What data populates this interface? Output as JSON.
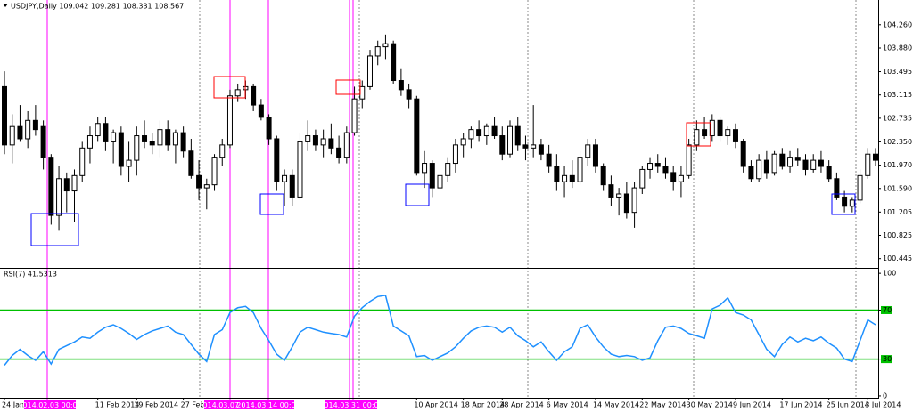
{
  "chart_data": [
    {
      "type": "candlestick",
      "title": "USDJPY,Daily 109.042 109.281 108.331 108.567",
      "categories": [
        "24 Jan 2014",
        null,
        null,
        null,
        null,
        null,
        null,
        null,
        null,
        null,
        null,
        null,
        "11 Feb 2014",
        null,
        null,
        null,
        null,
        "19 Feb 2014",
        null,
        null,
        null,
        null,
        null,
        "27 Feb 2014",
        null,
        null,
        null,
        null,
        null,
        null,
        null,
        null,
        null,
        null,
        null,
        null,
        null,
        null,
        null,
        null,
        null,
        null,
        null,
        null,
        null,
        null,
        null,
        null,
        null,
        null,
        null,
        null,
        null,
        "10 Apr 2014",
        null,
        null,
        null,
        null,
        null,
        "18 Apr 2014",
        null,
        null,
        null,
        null,
        "28 Apr 2014",
        null,
        null,
        null,
        null,
        null,
        "6 May 2014",
        null,
        null,
        null,
        null,
        null,
        "14 May 2014",
        null,
        null,
        null,
        null,
        null,
        "22 May 2014",
        null,
        null,
        null,
        null,
        null,
        "30 May 2014",
        null,
        null,
        null,
        null,
        null,
        "9 Jun 2014",
        null,
        null,
        null,
        null,
        null,
        "17 Jun 2014",
        null,
        null,
        null,
        null,
        null,
        "25 Jun 2014",
        null,
        null,
        null,
        null,
        "3 Jul 2014",
        null
      ],
      "open": [
        103.25,
        102.3,
        102.6,
        102.4,
        102.7,
        102.6,
        102.1,
        101.15,
        101.75,
        101.55,
        101.8,
        102.25,
        102.45,
        102.65,
        102.35,
        102.5,
        101.95,
        102.05,
        102.45,
        102.35,
        102.3,
        102.55,
        102.3,
        102.5,
        102.2,
        101.8,
        101.6,
        101.65,
        102.1,
        102.3,
        103.1,
        103.2,
        103.25,
        102.95,
        102.75,
        102.4,
        101.7,
        101.8,
        101.45,
        102.35,
        102.45,
        102.3,
        102.4,
        102.25,
        102.1,
        102.5,
        103.05,
        103.25,
        103.75,
        103.9,
        103.95,
        103.35,
        103.2,
        103.05,
        101.85,
        102.0,
        101.6,
        101.8,
        102.0,
        102.3,
        102.4,
        102.55,
        102.45,
        102.6,
        102.45,
        102.15,
        102.6,
        102.3,
        102.25,
        102.3,
        102.15,
        101.95,
        101.7,
        101.8,
        101.7,
        102.1,
        102.3,
        101.95,
        101.65,
        101.45,
        101.5,
        101.2,
        101.6,
        101.9,
        102.0,
        101.95,
        101.85,
        101.7,
        101.8,
        102.3,
        102.55,
        102.45,
        102.7,
        102.45,
        102.55,
        102.35,
        101.95,
        101.75,
        102.05,
        101.85,
        102.15,
        101.95,
        102.1,
        102.05,
        101.9,
        102.05,
        101.95,
        101.75,
        101.45,
        101.3,
        101.4,
        101.8,
        102.15
      ],
      "high": [
        103.5,
        102.8,
        102.95,
        102.85,
        102.95,
        102.7,
        102.15,
        101.95,
        101.85,
        101.9,
        102.35,
        102.6,
        102.75,
        102.75,
        102.55,
        102.6,
        102.35,
        102.6,
        102.7,
        102.5,
        102.7,
        102.7,
        102.55,
        102.6,
        102.4,
        102.05,
        101.75,
        102.15,
        102.4,
        103.2,
        103.3,
        103.35,
        103.3,
        103.05,
        102.8,
        102.45,
        101.9,
        101.9,
        102.5,
        102.7,
        102.55,
        102.55,
        102.65,
        102.45,
        102.6,
        103.25,
        103.35,
        103.85,
        104.0,
        104.1,
        104.0,
        103.55,
        103.3,
        103.1,
        102.2,
        102.05,
        101.9,
        102.1,
        102.4,
        102.5,
        102.6,
        102.7,
        102.65,
        102.75,
        102.6,
        102.7,
        102.75,
        102.45,
        102.95,
        102.4,
        102.3,
        102.15,
        101.95,
        102.05,
        102.2,
        102.4,
        102.4,
        102.0,
        101.8,
        101.6,
        101.7,
        101.7,
        101.95,
        102.1,
        102.15,
        102.1,
        101.95,
        101.95,
        102.4,
        102.7,
        102.75,
        102.8,
        102.75,
        102.6,
        102.65,
        102.4,
        102.05,
        102.15,
        102.2,
        102.2,
        102.25,
        102.2,
        102.25,
        102.15,
        102.15,
        102.2,
        102.05,
        101.85,
        101.55,
        101.45,
        101.9,
        102.25,
        102.25
      ],
      "low": [
        102.15,
        102.0,
        102.35,
        102.25,
        102.45,
        101.9,
        101.0,
        100.9,
        101.2,
        101.05,
        101.7,
        102.0,
        102.35,
        102.2,
        102.0,
        101.8,
        101.7,
        101.8,
        102.25,
        102.15,
        102.1,
        102.2,
        102.0,
        102.1,
        101.75,
        101.4,
        101.25,
        101.55,
        101.95,
        102.25,
        103.0,
        103.05,
        102.85,
        102.7,
        102.3,
        101.55,
        101.3,
        101.3,
        101.4,
        102.2,
        102.2,
        102.1,
        102.15,
        102.0,
        102.0,
        102.45,
        102.9,
        103.2,
        103.6,
        103.7,
        103.3,
        103.1,
        102.9,
        101.8,
        101.6,
        101.45,
        101.4,
        101.7,
        101.85,
        102.1,
        102.25,
        102.35,
        102.3,
        102.4,
        102.05,
        102.1,
        102.2,
        102.05,
        102.1,
        102.05,
        101.85,
        101.55,
        101.45,
        101.6,
        101.65,
        101.95,
        101.85,
        101.55,
        101.3,
        101.15,
        101.1,
        100.95,
        101.5,
        101.75,
        101.85,
        101.75,
        101.55,
        101.45,
        101.75,
        102.2,
        102.4,
        102.35,
        102.35,
        102.3,
        102.25,
        101.85,
        101.7,
        101.7,
        101.75,
        101.8,
        101.9,
        101.85,
        101.95,
        101.8,
        101.85,
        101.85,
        101.7,
        101.4,
        101.2,
        101.2,
        101.35,
        101.75,
        101.95
      ],
      "close": [
        102.3,
        102.6,
        102.4,
        102.7,
        102.55,
        102.1,
        101.15,
        101.75,
        101.55,
        101.8,
        102.25,
        102.45,
        102.65,
        102.35,
        102.5,
        101.95,
        102.05,
        102.45,
        102.35,
        102.3,
        102.55,
        102.3,
        102.5,
        102.2,
        101.8,
        101.6,
        101.65,
        102.1,
        102.3,
        103.1,
        103.2,
        103.25,
        102.95,
        102.75,
        102.4,
        101.7,
        101.8,
        101.45,
        102.35,
        102.45,
        102.3,
        102.4,
        102.25,
        102.1,
        102.5,
        103.05,
        103.25,
        103.75,
        103.9,
        103.95,
        103.35,
        103.2,
        103.05,
        101.85,
        102.0,
        101.6,
        101.8,
        102.0,
        102.3,
        102.4,
        102.55,
        102.45,
        102.6,
        102.45,
        102.15,
        102.6,
        102.3,
        102.25,
        102.3,
        102.15,
        101.95,
        101.7,
        101.8,
        101.7,
        102.1,
        102.3,
        101.95,
        101.65,
        101.45,
        101.5,
        101.2,
        101.6,
        101.9,
        102.0,
        101.95,
        101.85,
        101.7,
        101.8,
        102.3,
        102.55,
        102.45,
        102.7,
        102.45,
        102.55,
        102.35,
        101.95,
        101.75,
        102.05,
        101.85,
        102.15,
        101.95,
        102.1,
        102.05,
        101.9,
        102.05,
        101.95,
        101.75,
        101.45,
        101.3,
        101.4,
        101.8,
        102.15,
        102.05
      ],
      "up_color": "#ffffff",
      "down_color": "#000000",
      "outline_color": "#000000",
      "ylim": [
        100.31,
        104.62
      ],
      "yticks": [
        {
          "value": 104.26,
          "label": "104.260"
        },
        {
          "value": 103.88,
          "label": "103.880"
        },
        {
          "value": 103.495,
          "label": "103.495"
        },
        {
          "value": 103.115,
          "label": "103.115"
        },
        {
          "value": 102.735,
          "label": "102.735"
        },
        {
          "value": 102.35,
          "label": "102.350"
        },
        {
          "value": 101.97,
          "label": "101.970"
        },
        {
          "value": 101.59,
          "label": "101.590"
        },
        {
          "value": 101.205,
          "label": "101.205"
        },
        {
          "value": 100.825,
          "label": "100.825"
        },
        {
          "value": 100.445,
          "label": "100.445"
        }
      ]
    },
    {
      "type": "line",
      "title": "RSI(7) 41.5313",
      "values": [
        25,
        33,
        38,
        33,
        29,
        36,
        26,
        38,
        41,
        44,
        48,
        47,
        52,
        56,
        58,
        55,
        51,
        46,
        50,
        53,
        55,
        57,
        52,
        50,
        42,
        34,
        28,
        50,
        54,
        68,
        72,
        73,
        68,
        55,
        45,
        34,
        29,
        40,
        52,
        56,
        54,
        52,
        51,
        50,
        48,
        65,
        72,
        77,
        81,
        82,
        57,
        53,
        49,
        32,
        33,
        29,
        32,
        35,
        40,
        47,
        53,
        56,
        57,
        56,
        52,
        56,
        49,
        45,
        40,
        44,
        36,
        29,
        36,
        40,
        55,
        58,
        48,
        40,
        34,
        32,
        33,
        32,
        29,
        31,
        45,
        56,
        57,
        55,
        51,
        49,
        47,
        71,
        74,
        80,
        68,
        66,
        62,
        50,
        38,
        32,
        42,
        48,
        44,
        47,
        45,
        48,
        43,
        39,
        30,
        28,
        45,
        62,
        58
      ],
      "color": "#1e90ff",
      "level_color": "#00c000",
      "levels": [
        70,
        30
      ],
      "ylim": [
        -1.5,
        103
      ],
      "yticks": [
        100,
        70,
        30,
        0
      ]
    }
  ],
  "annotations": [
    "2014.02.03 00:00",
    "2014.03.07 00:00",
    "2014.03.14 00:00",
    "2014.03.31 00:00"
  ]
}
